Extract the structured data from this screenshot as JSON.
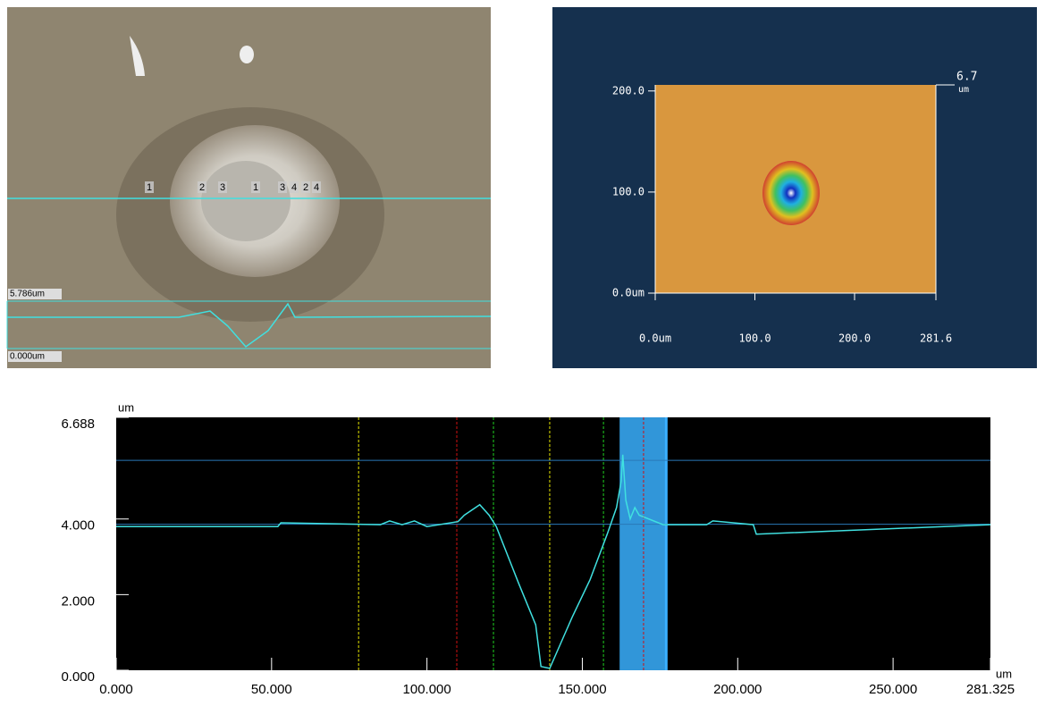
{
  "micrograph": {
    "scale_top": "5.786um",
    "scale_bottom": "0.000um",
    "markers": [
      "1",
      "2",
      "3",
      "1",
      "3",
      "4",
      "2",
      "4"
    ]
  },
  "chart_data": [
    {
      "type": "map",
      "xlim": [
        0,
        281.6
      ],
      "ylim": [
        0,
        206
      ],
      "xticks": [
        {
          "value": 0,
          "label": "0.0um"
        },
        {
          "value": 100,
          "label": "100.0"
        },
        {
          "value": 200,
          "label": "200.0"
        },
        {
          "value": 281.6,
          "label": "281.6"
        }
      ],
      "yticks": [
        {
          "value": 0,
          "label": "0.0um"
        },
        {
          "value": 100,
          "label": "100.0"
        },
        {
          "value": 200,
          "label": "200.0"
        }
      ],
      "zmax": {
        "value": 6.7,
        "label": "6.7"
      },
      "zunit": "um"
    },
    {
      "type": "line",
      "x_unit": "um",
      "y_unit": "um",
      "xlim": [
        0,
        281.325
      ],
      "ylim": [
        0,
        6.688
      ],
      "xticks": [
        {
          "value": 0,
          "label": "0.000"
        },
        {
          "value": 50,
          "label": "50.000"
        },
        {
          "value": 100,
          "label": "100.000"
        },
        {
          "value": 150,
          "label": "150.000"
        },
        {
          "value": 200,
          "label": "200.000"
        },
        {
          "value": 250,
          "label": "250.000"
        },
        {
          "value": 281.325,
          "label": "281.325"
        }
      ],
      "yticks": [
        {
          "value": 0,
          "label": "0.000"
        },
        {
          "value": 2,
          "label": "2.000"
        },
        {
          "value": 4,
          "label": "4.000"
        },
        {
          "value": 6.688,
          "label": "6.688"
        }
      ],
      "cursors": [
        {
          "color": "#e6e600",
          "x": 78
        },
        {
          "color": "#e6e600",
          "x": 139.5
        },
        {
          "color": "#d01010",
          "x": 109.6
        },
        {
          "color": "#d01010",
          "x": 169.7
        },
        {
          "color": "#20d020",
          "x": 121.4
        },
        {
          "color": "#20d020",
          "x": 156.8
        }
      ],
      "levels": [
        5.55,
        3.86
      ],
      "band": [
        162,
        177
      ],
      "series": [
        {
          "color": "#40e0e0",
          "x": [
            0,
            52,
            53,
            85,
            88,
            92,
            96,
            100,
            110,
            112,
            117,
            120,
            122.3,
            129.5,
            135,
            136.7,
            139.5,
            146.7,
            152.5,
            158,
            161,
            162.5,
            163,
            164,
            165.4,
            166.9,
            168.3,
            176,
            190,
            192,
            205,
            206,
            281.325
          ],
          "y": [
            3.8,
            3.8,
            3.9,
            3.85,
            3.95,
            3.85,
            3.95,
            3.8,
            3.93,
            4.1,
            4.38,
            4.1,
            3.8,
            2.3,
            1.2,
            0.1,
            0.05,
            1.4,
            2.4,
            3.6,
            4.3,
            5.0,
            5.7,
            4.5,
            4.0,
            4.3,
            4.1,
            3.85,
            3.85,
            3.95,
            3.85,
            3.6,
            3.85
          ]
        }
      ]
    }
  ]
}
